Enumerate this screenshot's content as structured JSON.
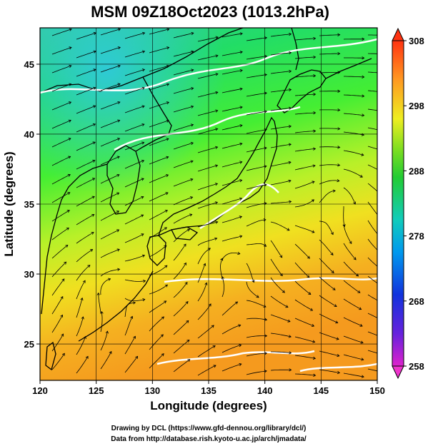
{
  "title": "MSM 09Z18Oct2023 (1013.2hPa)",
  "xlabel": "Longitude (degrees)",
  "ylabel": "Latitude  (degrees)",
  "x_ticks": [
    120,
    125,
    130,
    135,
    140,
    145,
    150
  ],
  "y_ticks": [
    25,
    30,
    35,
    40,
    45
  ],
  "colorbar": {
    "ticks": [
      308,
      298,
      288,
      278,
      268,
      258
    ],
    "min": 258,
    "max": 308
  },
  "credits": {
    "line1": "Drawing by DCL (https://www.gfd-dennou.org/library/dcl/)",
    "line2": "Data from http://database.rish.kyoto-u.ac.jp/arch/jmadata/"
  },
  "chart_data": {
    "type": "heatmap",
    "variable": "temperature with wind streamlines",
    "xlim": [
      120,
      150
    ],
    "ylim": [
      22.4,
      47.6
    ],
    "clim": [
      258,
      308
    ],
    "colorbar_labels": [
      258,
      268,
      278,
      288,
      298,
      308
    ]
  }
}
